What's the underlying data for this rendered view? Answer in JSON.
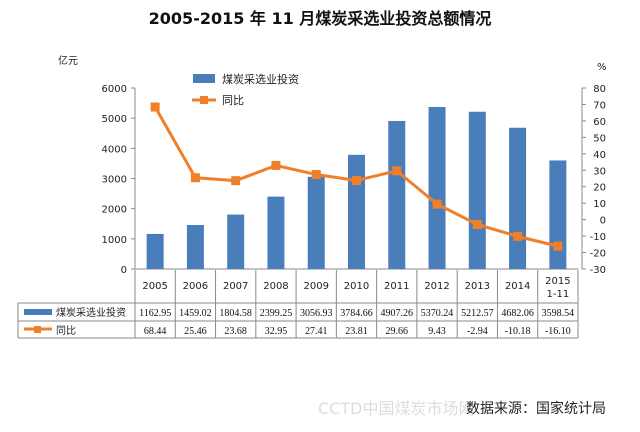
{
  "chart_data": {
    "type": "bar+line",
    "title": "2005-2015 年 11 月煤炭采选业投资总额情况",
    "categories": [
      "2005",
      "2006",
      "2007",
      "2008",
      "2009",
      "2010",
      "2011",
      "2012",
      "2013",
      "2014",
      "2015 1-11"
    ],
    "series": [
      {
        "name": "煤炭采选业投资",
        "type": "bar",
        "axis": "left",
        "color": "#4a7ebb",
        "values": [
          1162.95,
          1459.02,
          1804.58,
          2399.25,
          3056.93,
          3784.66,
          4907.26,
          5370.24,
          5212.57,
          4682.06,
          3598.54
        ]
      },
      {
        "name": "同比",
        "type": "line",
        "axis": "right",
        "color": "#f07f2a",
        "values": [
          68.44,
          25.46,
          23.68,
          32.95,
          27.41,
          23.81,
          29.66,
          9.43,
          -2.94,
          -10.18,
          -16.1
        ]
      }
    ],
    "y_left": {
      "label": "亿元",
      "ylim": [
        0,
        6000
      ],
      "ticks": [
        0,
        1000,
        2000,
        3000,
        4000,
        5000,
        6000
      ]
    },
    "y_right": {
      "label": "%",
      "ylim": [
        -30,
        80
      ],
      "ticks": [
        -30,
        -20,
        -10,
        0,
        10,
        20,
        30,
        40,
        50,
        60,
        70,
        80
      ]
    },
    "table_labels": [
      "1162.95",
      "1459.02",
      "1804.58",
      "2399.25",
      "3056.93",
      "3784.66",
      "4907.26",
      "5370.24",
      "5212.57",
      "4682.06",
      "3598.54"
    ],
    "table_labels_2": [
      "68.44",
      "25.46",
      "23.68",
      "32.95",
      "27.41",
      "23.81",
      "29.66",
      "9.43",
      "-2.94",
      "-10.18",
      "-16.10"
    ],
    "legend_placement": "top-left inside",
    "grid": false
  },
  "footer": {
    "source": "数据来源：国家统计局",
    "watermark": "CCTD中国煤炭市场网"
  }
}
